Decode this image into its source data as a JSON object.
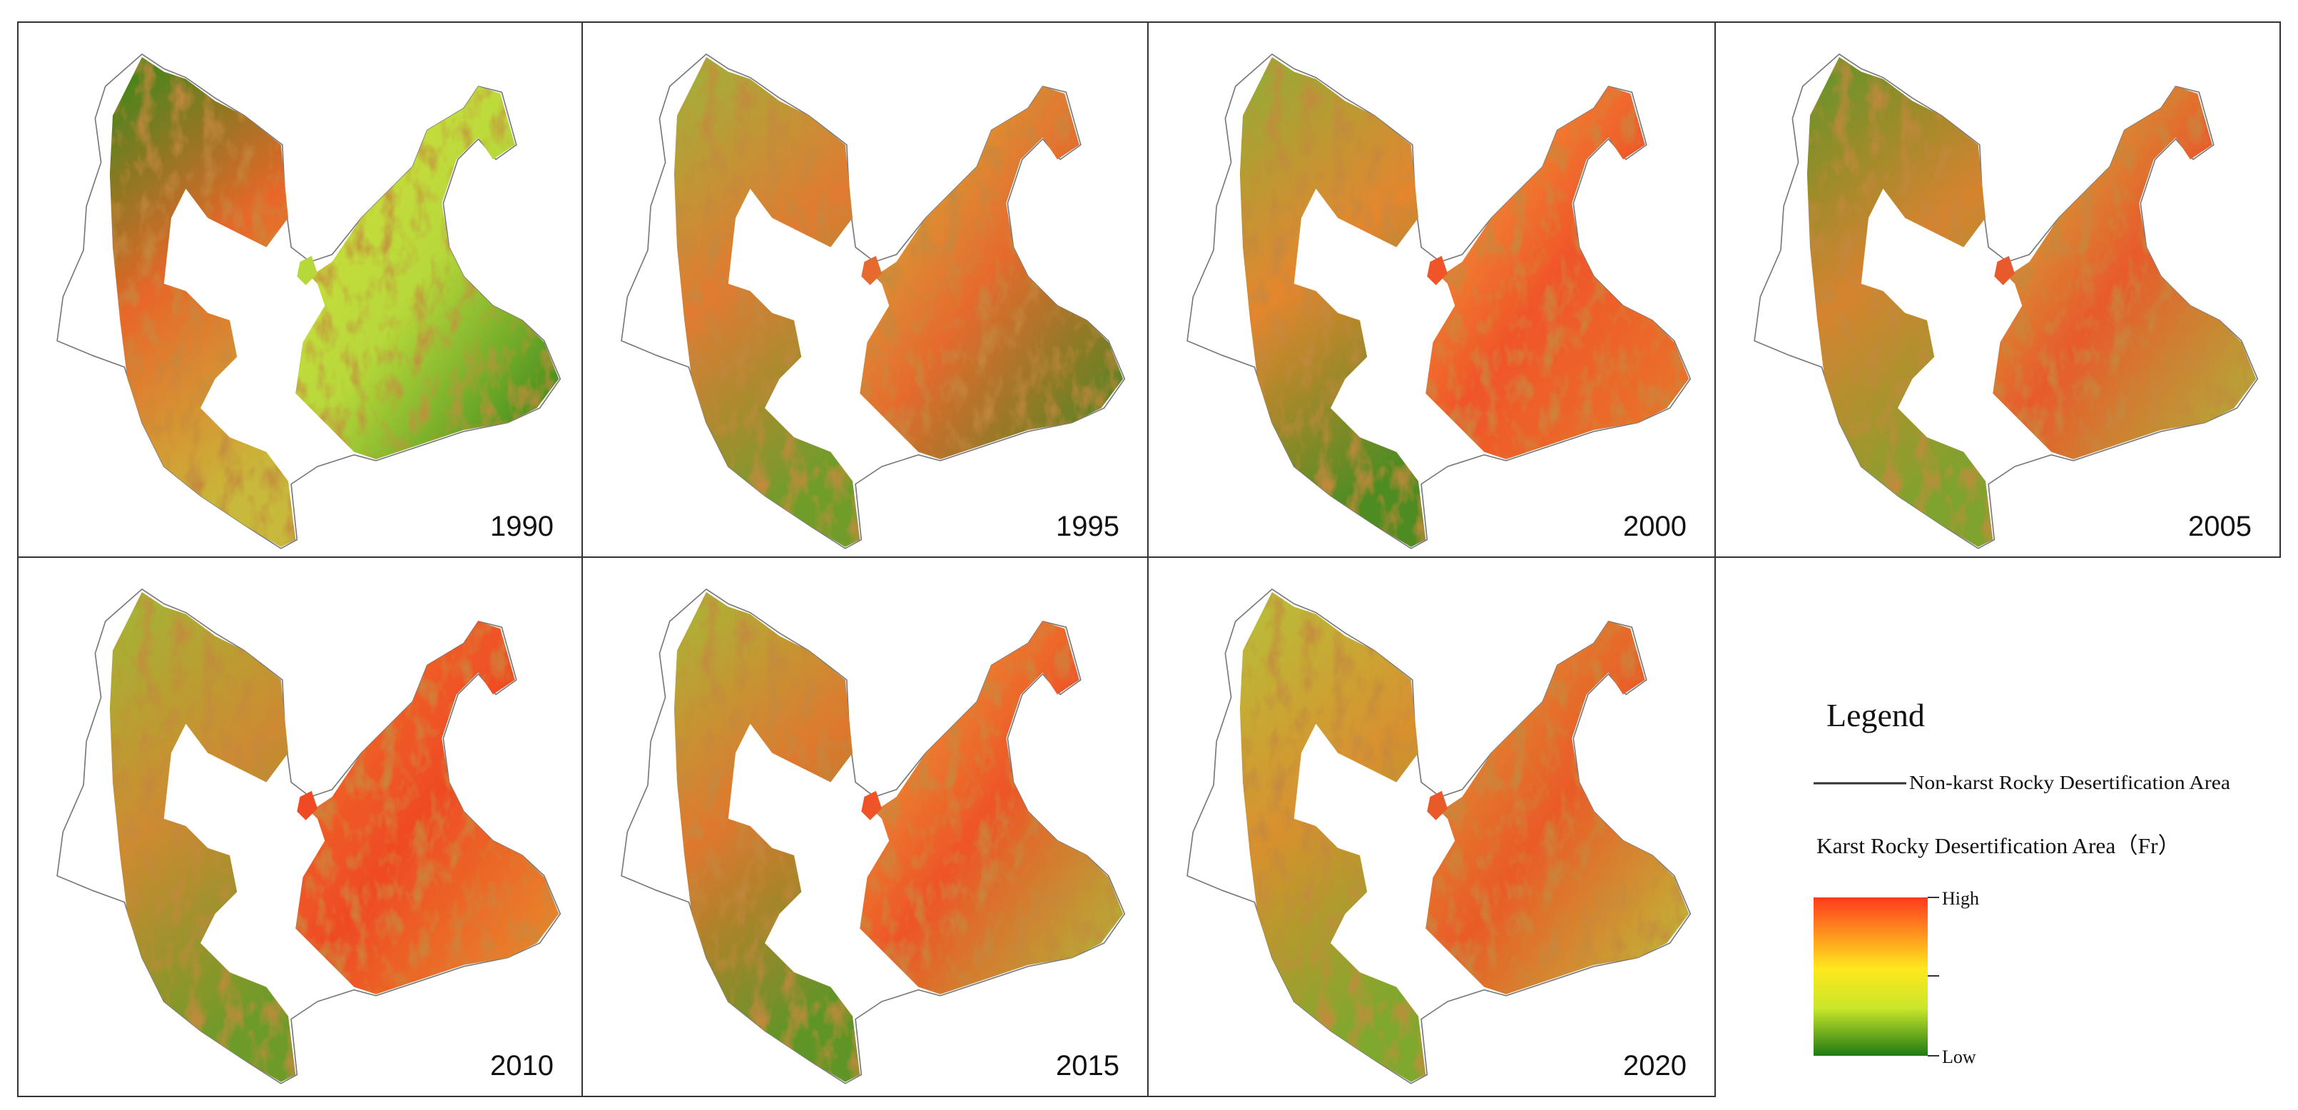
{
  "panels": [
    {
      "year": "1990"
    },
    {
      "year": "1995"
    },
    {
      "year": "2000"
    },
    {
      "year": "2005"
    },
    {
      "year": "2010"
    },
    {
      "year": "2015"
    },
    {
      "year": "2020"
    }
  ],
  "legend": {
    "title": "Legend",
    "line_label": "Non-karst Rocky Desertification Area",
    "ramp_label": "Karst Rocky Desertification Area（Fr）",
    "high": "High",
    "low": "Low"
  }
}
